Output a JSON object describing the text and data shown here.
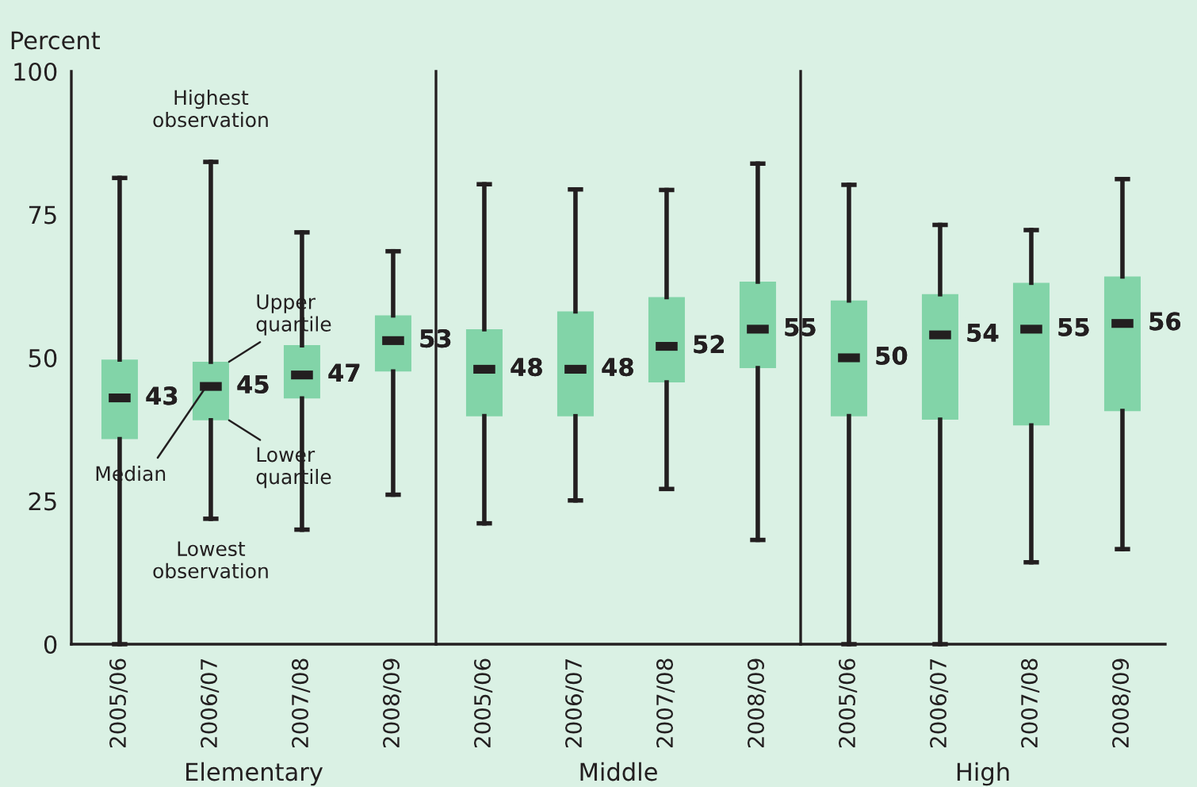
{
  "chart_data": [
    {
      "type": "box",
      "xlabel": "Elementary",
      "ylabel": "Percent",
      "categories": [
        "2005/06",
        "2006/07",
        "2007/08",
        "2008/09"
      ],
      "ylim": [
        0,
        100
      ],
      "yticks": [
        0,
        25,
        50,
        75,
        100
      ],
      "value_labels": [
        "43",
        "45",
        "47",
        "53"
      ],
      "color": "#82d4a8",
      "boxes": [
        {
          "low": 0,
          "q1": 35.8,
          "median": 43,
          "q3": 49.7,
          "high": 81.4
        },
        {
          "low": 21.9,
          "q1": 39.1,
          "median": 45,
          "q3": 49.3,
          "high": 84.2
        },
        {
          "low": 20.0,
          "q1": 42.9,
          "median": 47,
          "q3": 52.2,
          "high": 71.9
        },
        {
          "low": 26.1,
          "q1": 47.6,
          "median": 53,
          "q3": 57.4,
          "high": 68.6
        }
      ],
      "annotations": [
        {
          "text": "Highest observation",
          "x": "2006/07",
          "y": 84.2
        },
        {
          "text": "Upper quartile",
          "x": "2006/07",
          "y": 49.3
        },
        {
          "text": "Median",
          "x": "2006/07",
          "y": 45
        },
        {
          "text": "Lower quartile",
          "x": "2006/07",
          "y": 39.1
        },
        {
          "text": "Lowest observation",
          "x": "2006/07",
          "y": 21.9
        }
      ]
    },
    {
      "type": "box",
      "xlabel": "Middle",
      "categories": [
        "2005/06",
        "2006/07",
        "2007/08",
        "2008/09"
      ],
      "ylim": [
        0,
        100
      ],
      "tick_labels": "x",
      "value_labels": [
        "48",
        "48",
        "52",
        "55"
      ],
      "color": "#82d4a8",
      "boxes": [
        {
          "low": 21.1,
          "q1": 39.8,
          "median": 48,
          "q3": 55.0,
          "high": 80.3
        },
        {
          "low": 25.1,
          "q1": 39.8,
          "median": 48,
          "q3": 58.1,
          "high": 79.4
        },
        {
          "low": 27.1,
          "q1": 45.7,
          "median": 52,
          "q3": 60.6,
          "high": 79.3
        },
        {
          "low": 18.2,
          "q1": 48.2,
          "median": 55,
          "q3": 63.3,
          "high": 83.9
        }
      ]
    },
    {
      "type": "box",
      "xlabel": "High",
      "categories": [
        "2005/06",
        "2006/07",
        "2007/08",
        "2008/09"
      ],
      "ylim": [
        0,
        100
      ],
      "tick_labels": "x",
      "value_labels": [
        "50",
        "54",
        "55",
        "56"
      ],
      "color": "#82d4a8",
      "boxes": [
        {
          "low": 0,
          "q1": 39.8,
          "median": 50,
          "q3": 60.0,
          "high": 80.2
        },
        {
          "low": 0,
          "q1": 39.2,
          "median": 54,
          "q3": 61.1,
          "high": 73.2
        },
        {
          "low": 14.3,
          "q1": 38.2,
          "median": 55,
          "q3": 63.1,
          "high": 72.3
        },
        {
          "low": 16.6,
          "q1": 40.7,
          "median": 56,
          "q3": 64.2,
          "high": 81.2
        }
      ]
    }
  ]
}
